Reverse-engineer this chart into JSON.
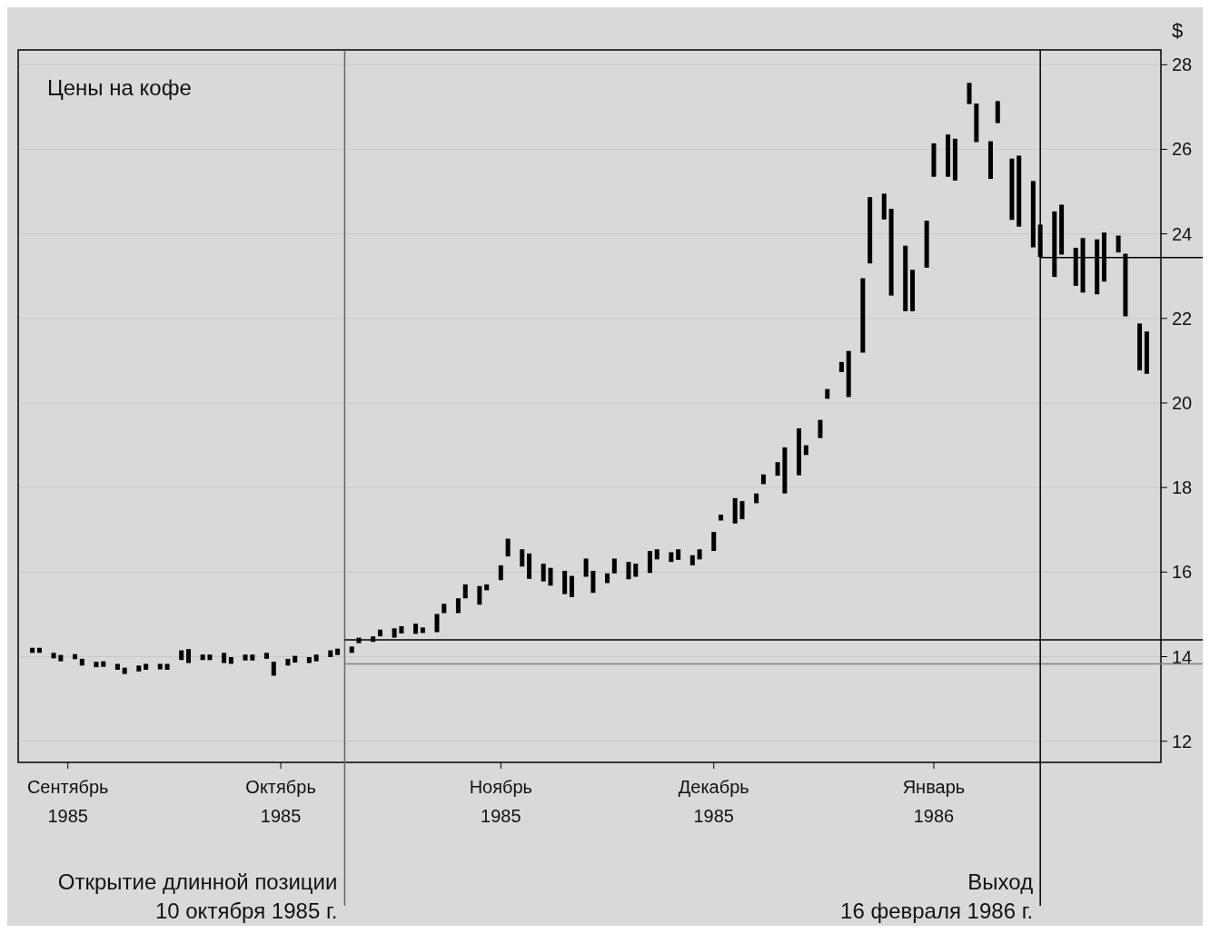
{
  "chart_data": {
    "type": "bar",
    "title": "Цены на кофе",
    "ylabel": "$",
    "color": "#000000",
    "x": [
      "1985-08-27",
      "1985-08-28",
      "1985-08-30",
      "1985-08-31",
      "1985-09-02",
      "1985-09-03",
      "1985-09-05",
      "1985-09-06",
      "1985-09-08",
      "1985-09-09",
      "1985-09-11",
      "1985-09-12",
      "1985-09-14",
      "1985-09-15",
      "1985-09-17",
      "1985-09-18",
      "1985-09-20",
      "1985-09-21",
      "1985-09-23",
      "1985-09-24",
      "1985-09-26",
      "1985-09-27",
      "1985-09-29",
      "1985-09-30",
      "1985-10-02",
      "1985-10-03",
      "1985-10-05",
      "1985-10-06",
      "1985-10-08",
      "1985-10-09",
      "1985-10-11",
      "1985-10-12",
      "1985-10-14",
      "1985-10-15",
      "1985-10-17",
      "1985-10-18",
      "1985-10-20",
      "1985-10-21",
      "1985-10-23",
      "1985-10-24",
      "1985-10-26",
      "1985-10-27",
      "1985-10-29",
      "1985-10-30",
      "1985-11-01",
      "1985-11-02",
      "1985-11-04",
      "1985-11-05",
      "1985-11-07",
      "1985-11-08",
      "1985-11-10",
      "1985-11-11",
      "1985-11-13",
      "1985-11-14",
      "1985-11-16",
      "1985-11-17",
      "1985-11-19",
      "1985-11-20",
      "1985-11-22",
      "1985-11-23",
      "1985-11-25",
      "1985-11-26",
      "1985-11-28",
      "1985-11-29",
      "1985-12-01",
      "1985-12-02",
      "1985-12-04",
      "1985-12-05",
      "1985-12-07",
      "1985-12-08",
      "1985-12-10",
      "1985-12-11",
      "1985-12-13",
      "1985-12-14",
      "1985-12-16",
      "1985-12-17",
      "1985-12-19",
      "1985-12-20",
      "1985-12-22",
      "1985-12-23",
      "1985-12-25",
      "1985-12-26",
      "1985-12-28",
      "1985-12-29",
      "1985-12-31",
      "1986-01-01",
      "1986-01-03",
      "1986-01-04",
      "1986-01-06",
      "1986-01-07",
      "1986-01-09",
      "1986-01-10",
      "1986-01-12",
      "1986-01-13",
      "1986-01-15",
      "1986-01-16",
      "1986-01-18",
      "1986-01-19",
      "1986-01-21",
      "1986-01-22",
      "1986-01-24",
      "1986-01-25",
      "1986-01-27",
      "1986-01-28",
      "1986-01-30",
      "1986-01-31"
    ],
    "base": [
      14.09,
      14.09,
      13.96,
      13.89,
      13.94,
      13.79,
      13.75,
      13.76,
      13.69,
      13.59,
      13.65,
      13.69,
      13.7,
      13.69,
      13.92,
      13.85,
      13.92,
      13.92,
      13.85,
      13.83,
      13.91,
      13.91,
      13.95,
      13.55,
      13.79,
      13.86,
      13.85,
      13.89,
      13.99,
      14.04,
      14.09,
      14.32,
      14.35,
      14.48,
      14.45,
      14.55,
      14.54,
      14.56,
      14.58,
      15.03,
      15.03,
      15.38,
      15.23,
      15.57,
      15.81,
      16.37,
      16.13,
      15.84,
      15.78,
      15.68,
      15.48,
      15.41,
      15.89,
      15.51,
      15.74,
      15.97,
      15.83,
      15.89,
      15.98,
      16.3,
      16.24,
      16.29,
      16.16,
      16.3,
      16.5,
      17.22,
      17.15,
      17.25,
      17.63,
      18.08,
      18.28,
      17.86,
      18.29,
      18.77,
      19.17,
      20.1,
      20.73,
      20.14,
      21.19,
      23.3,
      24.34,
      22.54,
      22.17,
      22.17,
      23.2,
      25.35,
      25.35,
      25.26,
      27.07,
      26.17,
      25.3,
      26.62,
      24.33,
      24.17,
      23.68,
      23.45,
      22.98,
      23.51,
      22.77,
      22.61,
      22.57,
      22.87,
      23.56,
      22.05,
      20.77,
      20.69
    ],
    "values": [
      0.12,
      0.12,
      0.13,
      0.15,
      0.12,
      0.16,
      0.13,
      0.13,
      0.14,
      0.15,
      0.14,
      0.14,
      0.13,
      0.14,
      0.23,
      0.33,
      0.13,
      0.13,
      0.24,
      0.16,
      0.14,
      0.14,
      0.14,
      0.33,
      0.16,
      0.16,
      0.14,
      0.16,
      0.16,
      0.15,
      0.15,
      0.13,
      0.13,
      0.16,
      0.22,
      0.17,
      0.24,
      0.13,
      0.43,
      0.22,
      0.35,
      0.33,
      0.44,
      0.14,
      0.35,
      0.42,
      0.41,
      0.6,
      0.42,
      0.42,
      0.55,
      0.5,
      0.43,
      0.52,
      0.23,
      0.35,
      0.41,
      0.31,
      0.52,
      0.24,
      0.23,
      0.25,
      0.24,
      0.24,
      0.45,
      0.14,
      0.6,
      0.43,
      0.23,
      0.23,
      0.32,
      1.09,
      1.11,
      0.23,
      0.43,
      0.23,
      0.24,
      1.09,
      1.76,
      1.57,
      0.61,
      2.05,
      1.55,
      0.98,
      1.11,
      0.79,
      1.0,
      0.99,
      0.5,
      0.91,
      0.89,
      0.52,
      1.45,
      1.68,
      1.57,
      0.77,
      1.55,
      1.18,
      0.9,
      1.29,
      1.3,
      1.16,
      0.4,
      1.48,
      1.11,
      1.0
    ],
    "xlim": [
      "1985-08-25",
      "1986-02-02"
    ],
    "xticks": [
      {
        "value": "1985-09-01",
        "label": "Сентябрь\n1985"
      },
      {
        "value": "1985-10-01",
        "label": "Октябрь\n1985"
      },
      {
        "value": "1985-11-01",
        "label": "Ноябрь\n1985"
      },
      {
        "value": "1985-12-01",
        "label": "Декабрь\n1985"
      },
      {
        "value": "1986-01-01",
        "label": "Январь\n1986"
      }
    ],
    "ylim": [
      11.5,
      28.35
    ],
    "yticks": [
      12,
      14,
      16,
      18,
      20,
      22,
      24,
      26,
      28
    ],
    "grid": "y",
    "ref_lines": [
      {
        "axis": "x",
        "value": "1985-10-10",
        "label": "Открытие длинной позиции\n10 октября 1985 г.",
        "color": "#666666"
      },
      {
        "axis": "y",
        "value": 14.4,
        "color": "#000000"
      },
      {
        "axis": "y",
        "value": 13.83,
        "color": "#808080"
      },
      {
        "axis": "x",
        "value": "1986-01-16",
        "label": "Выход\n16 февраля 1986 г.",
        "color": "#000000"
      },
      {
        "axis": "y",
        "value": 23.44,
        "color": "#000000"
      }
    ]
  }
}
